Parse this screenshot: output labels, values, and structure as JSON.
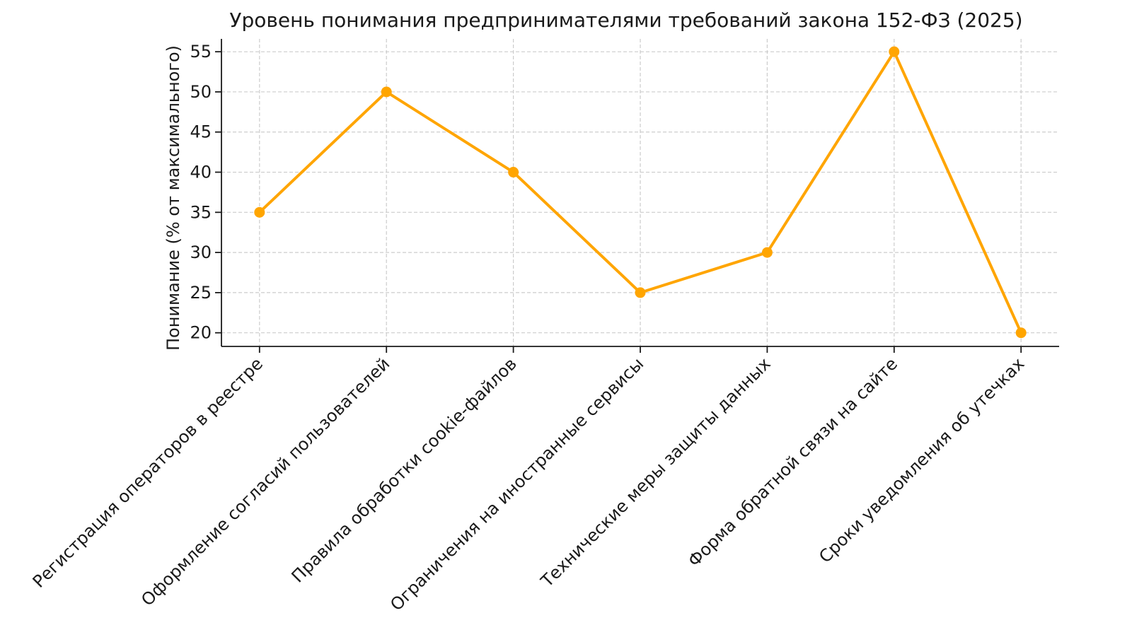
{
  "chart_data": {
    "type": "line",
    "title": "Уровень понимания предпринимателями требований закона 152-ФЗ (2025)",
    "ylabel": "Понимание (% от максимального)",
    "xlabel": "",
    "categories": [
      "Регистрация операторов в реестре",
      "Оформление согласий пользователей",
      "Правила обработки cookie-файлов",
      "Ограничения на иностранные сервисы",
      "Технические меры защиты данных",
      "Форма обратной связи на сайте",
      "Сроки уведомления об утечках"
    ],
    "values": [
      35,
      50,
      40,
      25,
      30,
      55,
      20
    ],
    "yticks": [
      20,
      25,
      30,
      35,
      40,
      45,
      50,
      55
    ],
    "ylim": [
      18.3,
      56.6
    ],
    "xlim": [
      -0.3,
      6.3
    ],
    "grid": true,
    "grid_style": "dashed",
    "legend_position": "none",
    "line_color": "#FFA500",
    "marker": "circle",
    "grid_color": "#cccccc",
    "spine_color": "#1a1a1a",
    "text_color": "#1a1a1a",
    "background_color": "#ffffff",
    "x_tick_rotation_deg": 45
  }
}
